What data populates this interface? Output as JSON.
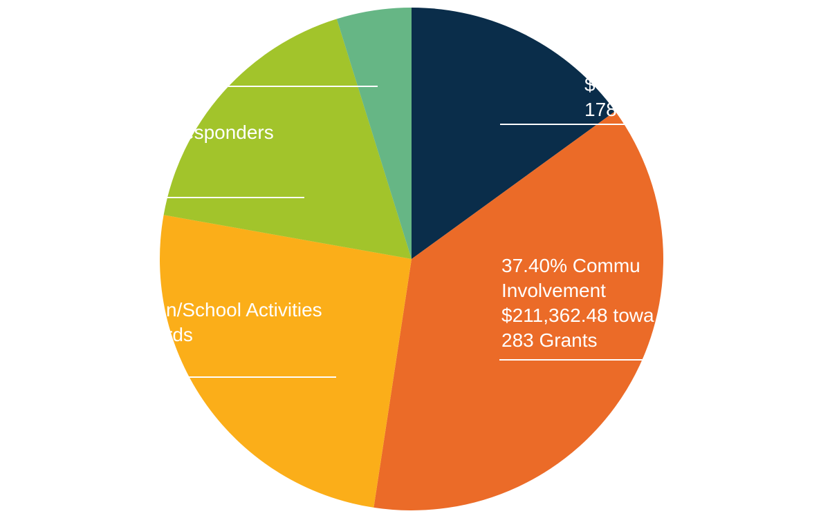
{
  "chart_data": {
    "type": "pie",
    "title": "",
    "colors": {
      "navy": "#0a2d4a",
      "orange": "#eb6b28",
      "yellow": "#fbae19",
      "lime": "#a2c42b",
      "green": "#66b685"
    },
    "slices": [
      {
        "value": 15.0,
        "color": "#0a2d4a",
        "label_lines": [
          "$",
          "178"
        ]
      },
      {
        "value": 37.4,
        "color": "#eb6b28",
        "label_lines": [
          "37.40% Commu",
          "Involvement",
          "$211,362.48 towa",
          "283 Grants"
        ]
      },
      {
        "value": 25.4,
        "color": "#fbae19",
        "label_lines": [
          "n/School Activities",
          "rds"
        ]
      },
      {
        "value": 17.4,
        "color": "#a2c42b",
        "label_lines": [
          "esponders"
        ]
      },
      {
        "value": 4.8,
        "color": "#66b685",
        "label_lines": []
      }
    ]
  }
}
